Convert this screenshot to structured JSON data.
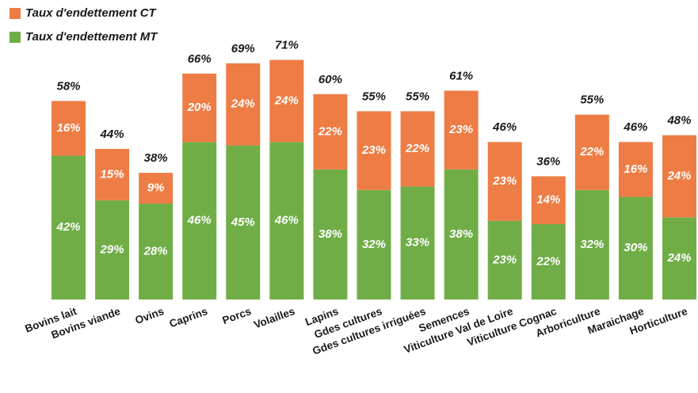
{
  "chart_data": {
    "type": "stacked_bar",
    "categories": [
      "Bovins lait",
      "Bovins viande",
      "Ovins",
      "Caprins",
      "Porcs",
      "Volailles",
      "Lapins",
      "Gdes cultures",
      "Gdes cultures irriguées",
      "Semences",
      "Viticulture Val de Loire",
      "Viticulture Cognac",
      "Arboriculture",
      "Maraichage",
      "Horticulture"
    ],
    "series": [
      {
        "name": "Taux d'endettement MT",
        "color": "#70ad47",
        "values": [
          42,
          29,
          28,
          46,
          45,
          46,
          38,
          32,
          33,
          38,
          23,
          22,
          32,
          30,
          24
        ],
        "value_labels": [
          "42%",
          "29%",
          "28%",
          "46%",
          "45%",
          "46%",
          "38%",
          "32%",
          "33%",
          "38%",
          "23%",
          "22%",
          "32%",
          "30%",
          "24%"
        ]
      },
      {
        "name": "Taux d'endettement CT",
        "color": "#ed7d45",
        "values": [
          16,
          15,
          9,
          20,
          24,
          24,
          22,
          23,
          22,
          23,
          23,
          14,
          22,
          16,
          24
        ],
        "value_labels": [
          "16%",
          "15%",
          "9%",
          "20%",
          "24%",
          "24%",
          "22%",
          "23%",
          "22%",
          "23%",
          "23%",
          "14%",
          "22%",
          "16%",
          "24%"
        ]
      }
    ],
    "total_labels": [
      "58%",
      "44%",
      "38%",
      "66%",
      "69%",
      "71%",
      "60%",
      "55%",
      "55%",
      "61%",
      "46%",
      "36%",
      "55%",
      "46%",
      "48%"
    ],
    "legend": "top-left"
  }
}
